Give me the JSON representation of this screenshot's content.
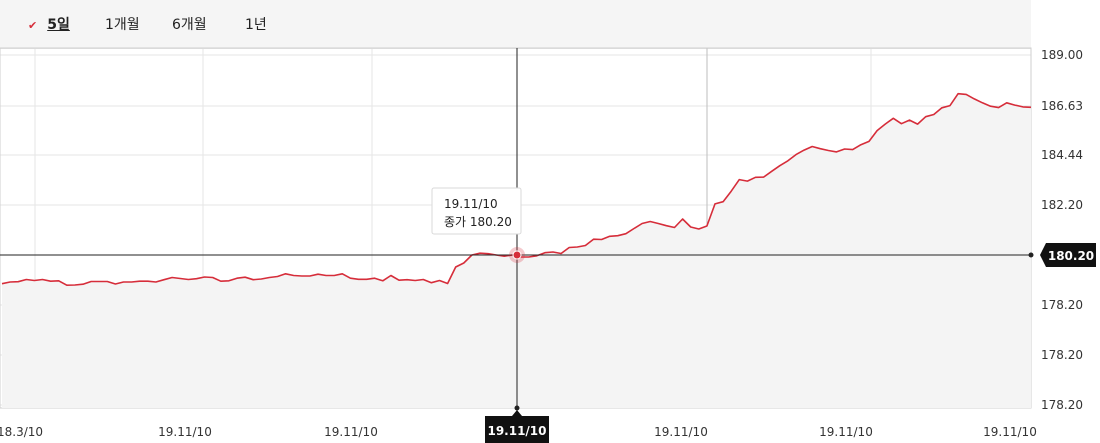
{
  "tabs": [
    {
      "label": "5일",
      "active": true
    },
    {
      "label": "1개월",
      "active": false
    },
    {
      "label": "6개월",
      "active": false
    },
    {
      "label": "1년",
      "active": false
    }
  ],
  "tooltip": {
    "date": "19.11/10",
    "text": "종가 180.20"
  },
  "crosshair": {
    "x_label": "19.11/10",
    "y_label": "180.20"
  },
  "colors": {
    "line": "#d62d3a",
    "fill": "#f4f4f4",
    "crosshair": "#222222",
    "grid": "#e6e6e6"
  },
  "chart_data": {
    "type": "area",
    "y_axis_position": "right",
    "y_tick_labels": [
      "189.00",
      "186.63",
      "184.44",
      "182.20",
      "180.20",
      "178.20",
      "178.20",
      "178.20"
    ],
    "x_tick_labels": [
      "18.3/10",
      "19.11/10",
      "19.11/10",
      "19.11/10",
      "19.11/10",
      "19.11/10",
      "19.11/10"
    ],
    "grid": true,
    "highlight_index": 63,
    "values": [
      179.05,
      179.12,
      179.13,
      179.22,
      179.18,
      179.22,
      179.15,
      179.17,
      178.99,
      179.0,
      179.03,
      179.14,
      179.14,
      179.14,
      179.04,
      179.12,
      179.12,
      179.15,
      179.15,
      179.12,
      179.21,
      179.3,
      179.26,
      179.22,
      179.25,
      179.32,
      179.3,
      179.15,
      179.17,
      179.27,
      179.31,
      179.21,
      179.24,
      179.3,
      179.34,
      179.45,
      179.38,
      179.36,
      179.36,
      179.43,
      179.38,
      179.38,
      179.45,
      179.27,
      179.23,
      179.23,
      179.27,
      179.17,
      179.38,
      179.19,
      179.21,
      179.18,
      179.22,
      179.09,
      179.18,
      179.06,
      179.72,
      179.88,
      180.2,
      180.27,
      180.25,
      180.2,
      180.15,
      180.2,
      180.12,
      180.12,
      180.17,
      180.29,
      180.32,
      180.26,
      180.5,
      180.52,
      180.58,
      180.83,
      180.82,
      180.95,
      180.97,
      181.05,
      181.26,
      181.46,
      181.54,
      181.46,
      181.37,
      181.3,
      181.64,
      181.32,
      181.24,
      181.36,
      182.25,
      182.35,
      182.82,
      183.34,
      183.27,
      183.44,
      183.45,
      183.71,
      183.96,
      184.18,
      184.46,
      184.66,
      184.82,
      184.72,
      184.64,
      184.58,
      184.71,
      184.68,
      184.9,
      185.05,
      185.53,
      185.82,
      186.08,
      185.84,
      186.0,
      185.82,
      186.15,
      186.25,
      186.55,
      186.65,
      187.2,
      187.17,
      186.96,
      186.78,
      186.62,
      186.56,
      186.78,
      186.67,
      186.59,
      186.57
    ]
  }
}
